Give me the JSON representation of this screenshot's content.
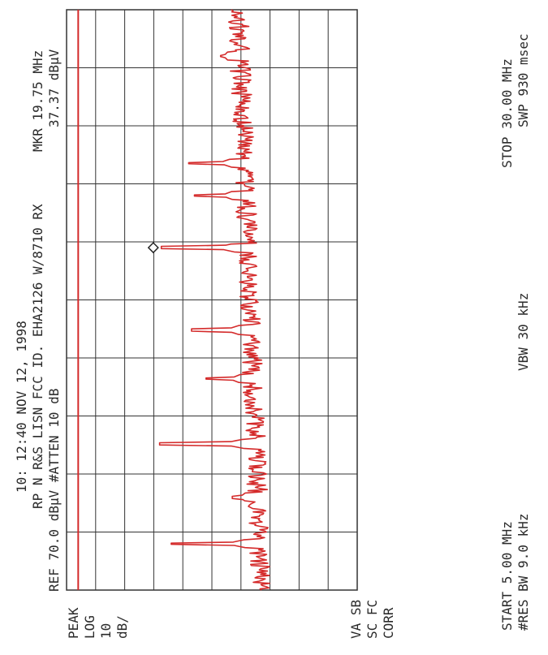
{
  "header": {
    "line1": "10: 12:40 NOV 12, 1998",
    "line2": "RP N  R&S LISN FCC ID. EHA2126 W/8710 RX",
    "ref_line": "REF 70.0 dBµV  #ATTEN 10 dB",
    "marker_label": "MKR 19.75 MHz",
    "marker_value": "37.37 dBµV"
  },
  "left_panel": {
    "items": [
      "PEAK",
      "LOG",
      "10",
      "dB/"
    ]
  },
  "bottom_left": {
    "items": [
      "VA SB",
      "SC FC",
      "CORR"
    ]
  },
  "footer": {
    "start": "START 5.00 MHz",
    "stop": "STOP 30.00 MHz",
    "res_bw": "#RES BW 9.0 kHz",
    "vbw": "VBW 30 kHz",
    "swp": "SWP 930 msec"
  },
  "colors": {
    "trace": "#d42a2a",
    "limit_line": "#d42a2a",
    "grid": "#333333"
  },
  "chart_data": {
    "type": "line",
    "title": "",
    "xlabel": "",
    "ylabel": "",
    "x_unit": "MHz",
    "y_unit": "dBµV",
    "xlim": [
      5.0,
      30.0
    ],
    "ylim": [
      -30,
      70
    ],
    "grid": true,
    "grid_divisions": {
      "x": 10,
      "y": 10
    },
    "limit_line": {
      "value": 66
    },
    "marker": {
      "x": 19.75,
      "y": 37.37
    },
    "peaks": [
      {
        "x": 7.0,
        "y": 34
      },
      {
        "x": 9.0,
        "y": 13
      },
      {
        "x": 11.3,
        "y": 38
      },
      {
        "x": 14.1,
        "y": 22
      },
      {
        "x": 16.2,
        "y": 27
      },
      {
        "x": 19.75,
        "y": 37.4
      },
      {
        "x": 22.0,
        "y": 26
      },
      {
        "x": 23.4,
        "y": 28
      },
      {
        "x": 28.0,
        "y": 17
      }
    ],
    "noise_floor": {
      "start": 3,
      "end": 11
    }
  }
}
